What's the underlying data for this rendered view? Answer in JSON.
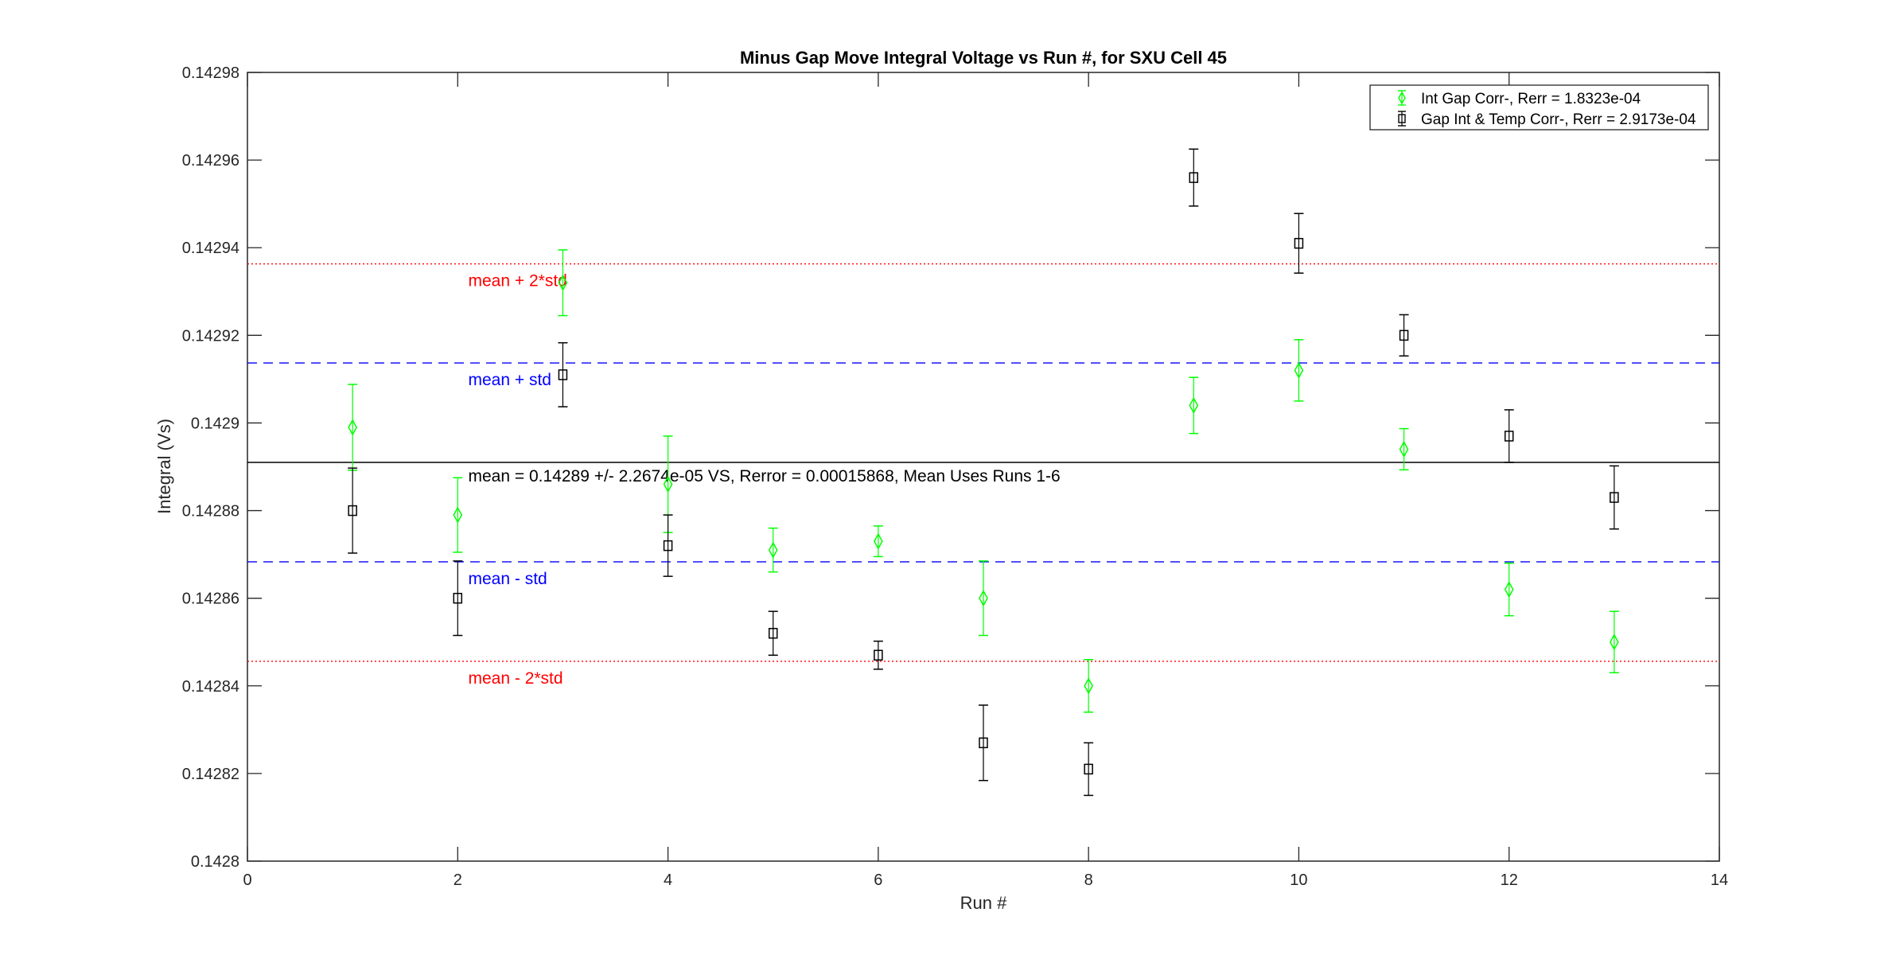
{
  "chart_data": {
    "type": "scatter",
    "title": "Minus Gap Move Integral Voltage vs Run #, for SXU Cell 45",
    "xlabel": "Run #",
    "ylabel": "Integral (Vs)",
    "xlim": [
      0,
      14
    ],
    "ylim": [
      0.1428,
      0.14298
    ],
    "xticks": [
      0,
      2,
      4,
      6,
      8,
      10,
      12,
      14
    ],
    "xtick_labels": [
      "0",
      "2",
      "4",
      "6",
      "8",
      "10",
      "12",
      "14"
    ],
    "yticks": [
      0.1428,
      0.14282,
      0.14284,
      0.14286,
      0.14288,
      0.1429,
      0.14292,
      0.14294,
      0.14296,
      0.14298
    ],
    "ytick_labels": [
      "0.1428",
      "0.14282",
      "0.14284",
      "0.14286",
      "0.14288",
      "0.1429",
      "0.14292",
      "0.14294",
      "0.14296",
      "0.14298"
    ],
    "grid": false,
    "legend_placement": "top-right",
    "series": [
      {
        "name": "Int Gap Corr-, Rerr = 1.8323e-04",
        "marker": "diamond",
        "color": "#00ff00",
        "x": [
          1,
          2,
          3,
          4,
          5,
          6,
          7,
          8,
          9,
          10,
          11,
          12,
          13
        ],
        "y": [
          0.142899,
          0.142879,
          0.142932,
          0.142886,
          0.142871,
          0.142873,
          0.14286,
          0.14284,
          0.142904,
          0.142912,
          0.142894,
          0.142862,
          0.14285
        ],
        "err": [
          9.8e-06,
          8.5e-06,
          7.5e-06,
          1.1e-05,
          5e-06,
          3.5e-06,
          8.5e-06,
          6e-06,
          6.4e-06,
          7e-06,
          4.7e-06,
          6e-06,
          7e-06
        ]
      },
      {
        "name": "Gap Int & Temp Corr-, Rerr = 2.9173e-04",
        "marker": "square",
        "color": "#000000",
        "x": [
          1,
          2,
          3,
          4,
          5,
          6,
          7,
          8,
          9,
          10,
          11,
          12,
          13
        ],
        "y": [
          0.14288,
          0.14286,
          0.142911,
          0.142872,
          0.142852,
          0.142847,
          0.142827,
          0.142821,
          0.142956,
          0.142941,
          0.14292,
          0.142897,
          0.142883
        ],
        "err": [
          9.7e-06,
          8.5e-06,
          7.3e-06,
          7e-06,
          5e-06,
          3.2e-06,
          8.6e-06,
          6e-06,
          6.5e-06,
          6.8e-06,
          4.7e-06,
          6e-06,
          7.2e-06
        ]
      }
    ],
    "reference_lines": [
      {
        "y": 0.142891,
        "color": "#000000",
        "style": "solid",
        "label": "mean = 0.14289 +/- 2.2674e-05 VS, Rerror = 0.00015868, Mean Uses Runs 1-6"
      },
      {
        "y": 0.1429137,
        "color": "#0000ff",
        "style": "dashed",
        "label": "mean + std"
      },
      {
        "y": 0.1428683,
        "color": "#0000ff",
        "style": "dashed",
        "label": "mean - std"
      },
      {
        "y": 0.1429363,
        "color": "#ff0000",
        "style": "dotted",
        "label": "mean + 2*std"
      },
      {
        "y": 0.1428456,
        "color": "#ff0000",
        "style": "dotted",
        "label": "mean - 2*std"
      }
    ]
  }
}
